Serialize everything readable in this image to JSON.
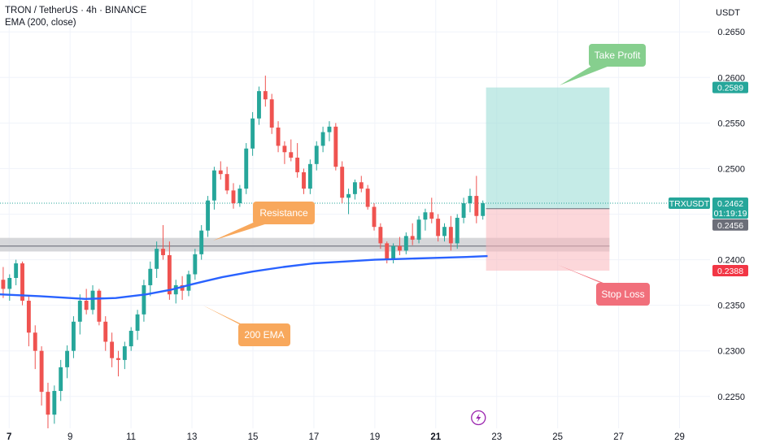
{
  "header": {
    "title": "TRON / TetherUS · 4h · BINANCE",
    "indicator": "EMA (200, close)",
    "currency": "USDT"
  },
  "chart_data": {
    "type": "candlestick",
    "ylim": [
      0.2215,
      0.2685
    ],
    "y_ticks": [
      "0.2650",
      "0.2600",
      "0.2550",
      "0.2500",
      "0.2450",
      "0.2400",
      "0.2350",
      "0.2300",
      "0.2250"
    ],
    "y_tick_values": [
      0.265,
      0.26,
      0.255,
      0.25,
      0.245,
      0.24,
      0.235,
      0.23,
      0.225
    ],
    "x_range": [
      6.7,
      30.0
    ],
    "x_ticks": [
      {
        "label": "7",
        "day": 7,
        "bold": true
      },
      {
        "label": "9",
        "day": 9
      },
      {
        "label": "11",
        "day": 11
      },
      {
        "label": "13",
        "day": 13
      },
      {
        "label": "15",
        "day": 15
      },
      {
        "label": "17",
        "day": 17
      },
      {
        "label": "19",
        "day": 19
      },
      {
        "label": "21",
        "day": 21,
        "bold": true
      },
      {
        "label": "23",
        "day": 23
      },
      {
        "label": "25",
        "day": 25
      },
      {
        "label": "27",
        "day": 27
      },
      {
        "label": "29",
        "day": 29
      }
    ],
    "grid": true,
    "colors": {
      "up": "#26a69a",
      "down": "#ef5350",
      "ema": "#2962ff",
      "text": "#131722",
      "grid": "#f0f3fa"
    },
    "candles": [
      [
        0.2378,
        0.2392,
        0.2358,
        0.2368
      ],
      [
        0.2368,
        0.2384,
        0.2355,
        0.238
      ],
      [
        0.238,
        0.24,
        0.2372,
        0.2396
      ],
      [
        0.2396,
        0.2398,
        0.235,
        0.2355
      ],
      [
        0.2355,
        0.236,
        0.2305,
        0.232
      ],
      [
        0.232,
        0.2328,
        0.228,
        0.23
      ],
      [
        0.23,
        0.2305,
        0.224,
        0.2255
      ],
      [
        0.2255,
        0.2265,
        0.2215,
        0.223
      ],
      [
        0.223,
        0.2262,
        0.222,
        0.2256
      ],
      [
        0.2256,
        0.229,
        0.2245,
        0.2282
      ],
      [
        0.2282,
        0.2306,
        0.227,
        0.23
      ],
      [
        0.23,
        0.2338,
        0.2292,
        0.2332
      ],
      [
        0.2332,
        0.2362,
        0.2318,
        0.2355
      ],
      [
        0.2355,
        0.2368,
        0.234,
        0.2345
      ],
      [
        0.2345,
        0.2372,
        0.234,
        0.2366
      ],
      [
        0.2366,
        0.2368,
        0.2328,
        0.2332
      ],
      [
        0.2332,
        0.2338,
        0.23,
        0.231
      ],
      [
        0.231,
        0.232,
        0.2282,
        0.2292
      ],
      [
        0.2292,
        0.23,
        0.2272,
        0.229
      ],
      [
        0.229,
        0.231,
        0.228,
        0.2305
      ],
      [
        0.2305,
        0.2326,
        0.23,
        0.2322
      ],
      [
        0.2322,
        0.2345,
        0.2312,
        0.234
      ],
      [
        0.234,
        0.2378,
        0.2332,
        0.2372
      ],
      [
        0.2372,
        0.2398,
        0.236,
        0.239
      ],
      [
        0.239,
        0.242,
        0.238,
        0.2412
      ],
      [
        0.2412,
        0.2438,
        0.24,
        0.2405
      ],
      [
        0.2405,
        0.242,
        0.2356,
        0.2362
      ],
      [
        0.2362,
        0.2378,
        0.2352,
        0.2372
      ],
      [
        0.2372,
        0.2382,
        0.2356,
        0.2366
      ],
      [
        0.2366,
        0.2388,
        0.236,
        0.2384
      ],
      [
        0.2384,
        0.2412,
        0.2378,
        0.2406
      ],
      [
        0.2406,
        0.2438,
        0.24,
        0.2432
      ],
      [
        0.2432,
        0.247,
        0.2425,
        0.2465
      ],
      [
        0.2465,
        0.2502,
        0.2455,
        0.2498
      ],
      [
        0.2498,
        0.2508,
        0.2488,
        0.2494
      ],
      [
        0.2494,
        0.2502,
        0.2472,
        0.2476
      ],
      [
        0.2476,
        0.2484,
        0.2456,
        0.2462
      ],
      [
        0.2462,
        0.2482,
        0.2458,
        0.2478
      ],
      [
        0.2478,
        0.2528,
        0.2472,
        0.2522
      ],
      [
        0.2522,
        0.2562,
        0.2514,
        0.2555
      ],
      [
        0.2555,
        0.259,
        0.2548,
        0.2585
      ],
      [
        0.2585,
        0.2602,
        0.2568,
        0.2576
      ],
      [
        0.2576,
        0.2582,
        0.2538,
        0.2545
      ],
      [
        0.2545,
        0.2552,
        0.2518,
        0.2525
      ],
      [
        0.2525,
        0.253,
        0.2505,
        0.2518
      ],
      [
        0.2518,
        0.2532,
        0.2508,
        0.2512
      ],
      [
        0.2512,
        0.2528,
        0.249,
        0.2496
      ],
      [
        0.2496,
        0.25,
        0.2472,
        0.2478
      ],
      [
        0.2478,
        0.251,
        0.2472,
        0.2505
      ],
      [
        0.2505,
        0.253,
        0.2498,
        0.2525
      ],
      [
        0.2525,
        0.2546,
        0.2518,
        0.254
      ],
      [
        0.254,
        0.2552,
        0.253,
        0.2546
      ],
      [
        0.2546,
        0.255,
        0.2498,
        0.2502
      ],
      [
        0.2502,
        0.2508,
        0.2462,
        0.2468
      ],
      [
        0.2468,
        0.2478,
        0.245,
        0.2472
      ],
      [
        0.2472,
        0.2488,
        0.2466,
        0.2485
      ],
      [
        0.2485,
        0.2492,
        0.2474,
        0.2478
      ],
      [
        0.2478,
        0.2482,
        0.2455,
        0.2458
      ],
      [
        0.2458,
        0.2462,
        0.2432,
        0.2436
      ],
      [
        0.2436,
        0.244,
        0.2412,
        0.2418
      ],
      [
        0.2418,
        0.242,
        0.2396,
        0.24
      ],
      [
        0.24,
        0.2418,
        0.2396,
        0.2415
      ],
      [
        0.2415,
        0.2425,
        0.2405,
        0.241
      ],
      [
        0.241,
        0.243,
        0.2406,
        0.2426
      ],
      [
        0.2426,
        0.244,
        0.2416,
        0.2422
      ],
      [
        0.2422,
        0.2448,
        0.2418,
        0.2444
      ],
      [
        0.2444,
        0.2456,
        0.2432,
        0.2452
      ],
      [
        0.2452,
        0.2468,
        0.244,
        0.2445
      ],
      [
        0.2445,
        0.245,
        0.242,
        0.2426
      ],
      [
        0.2426,
        0.244,
        0.242,
        0.2436
      ],
      [
        0.2436,
        0.2448,
        0.241,
        0.2418
      ],
      [
        0.2418,
        0.245,
        0.2412,
        0.2446
      ],
      [
        0.2446,
        0.2468,
        0.244,
        0.2462
      ],
      [
        0.2462,
        0.2478,
        0.2452,
        0.247
      ],
      [
        0.247,
        0.2492,
        0.244,
        0.2448
      ],
      [
        0.2448,
        0.2465,
        0.2444,
        0.2462
      ]
    ],
    "ema": [
      [
        6.7,
        0.2362
      ],
      [
        8.0,
        0.236
      ],
      [
        9.5,
        0.2357
      ],
      [
        10.5,
        0.2358
      ],
      [
        11.5,
        0.2362
      ],
      [
        12.3,
        0.2367
      ],
      [
        13.0,
        0.2373
      ],
      [
        14.0,
        0.2381
      ],
      [
        15.0,
        0.2387
      ],
      [
        16.0,
        0.2392
      ],
      [
        17.0,
        0.2396
      ],
      [
        18.0,
        0.2398
      ],
      [
        19.0,
        0.24
      ],
      [
        20.0,
        0.2401
      ],
      [
        21.0,
        0.2402
      ],
      [
        22.0,
        0.2403
      ],
      [
        22.7,
        0.2404
      ]
    ],
    "resistance": {
      "low": 0.2409,
      "high": 0.2424,
      "line": 0.2415,
      "x_start": 6.7,
      "x_end": 26.7
    },
    "position": {
      "entry": 0.2456,
      "target": 0.2589,
      "stop": 0.2388,
      "x_start": 22.65,
      "x_end": 26.7
    },
    "last_price_line": 0.2462,
    "annotations": {
      "take_profit": "Take Profit",
      "stop_loss": "Stop Loss",
      "resistance": "Resistance",
      "ema": "200 EMA"
    },
    "price_tags": {
      "target": "0.2589",
      "last_symbol": "TRXUSDT",
      "last_price": "0.2462",
      "countdown": "01:19:19",
      "entry": "0.2456",
      "stop": "0.2388"
    }
  }
}
